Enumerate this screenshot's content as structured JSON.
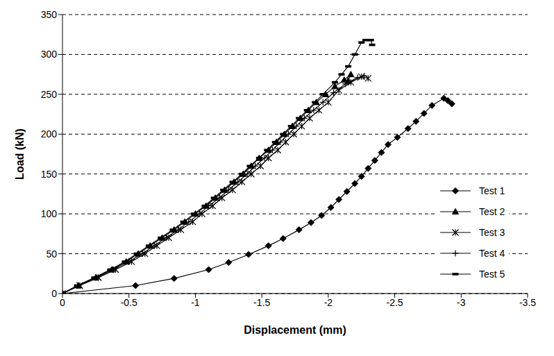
{
  "chart_data": {
    "type": "line",
    "x_label": "Displacement (mm)",
    "y_label": "Load (kN)",
    "xlim": [
      0,
      -3.5
    ],
    "xticks": [
      0,
      -0.5,
      -1,
      -1.5,
      -2,
      -2.5,
      -3,
      -3.5
    ],
    "ylim": [
      0,
      350
    ],
    "yticks": [
      0,
      50,
      100,
      150,
      200,
      250,
      300,
      350
    ],
    "grid": true,
    "legend": "lower right",
    "series": [
      {
        "name": "Test 1",
        "color": "#000000",
        "marker": "diamond",
        "x": [
          0,
          -0.55,
          -0.84,
          -1.1,
          -1.25,
          -1.4,
          -1.55,
          -1.66,
          -1.78,
          -1.87,
          -1.95,
          -2.02,
          -2.08,
          -2.14,
          -2.2,
          -2.25,
          -2.3,
          -2.35,
          -2.4,
          -2.45,
          -2.52,
          -2.6,
          -2.66,
          -2.72,
          -2.78,
          -2.87,
          -2.9,
          -2.93
        ],
        "values": [
          0,
          10,
          19,
          30,
          39,
          49,
          60,
          69,
          80,
          89,
          98,
          108,
          118,
          128,
          138,
          147,
          157,
          167,
          177,
          187,
          196,
          207,
          216,
          226,
          236,
          245,
          242,
          238
        ]
      },
      {
        "name": "Test 2",
        "color": "#000000",
        "marker": "triangle",
        "x": [
          0,
          -0.12,
          -0.25,
          -0.37,
          -0.48,
          -0.57,
          -0.66,
          -0.75,
          -0.84,
          -0.92,
          -1.0,
          -1.08,
          -1.15,
          -1.22,
          -1.29,
          -1.36,
          -1.42,
          -1.48,
          -1.55,
          -1.61,
          -1.67,
          -1.73,
          -1.79,
          -1.85,
          -1.91,
          -1.98,
          -2.05,
          -2.12,
          -2.17,
          -2.15
        ],
        "values": [
          0,
          10,
          20,
          30,
          40,
          50,
          60,
          70,
          80,
          90,
          100,
          110,
          120,
          130,
          140,
          150,
          160,
          170,
          180,
          190,
          200,
          210,
          220,
          230,
          240,
          250,
          260,
          268,
          275,
          267
        ]
      },
      {
        "name": "Test 3",
        "color": "#000000",
        "marker": "star",
        "x": [
          0,
          -0.13,
          -0.27,
          -0.4,
          -0.52,
          -0.62,
          -0.71,
          -0.8,
          -0.89,
          -0.98,
          -1.05,
          -1.13,
          -1.2,
          -1.28,
          -1.35,
          -1.42,
          -1.49,
          -1.55,
          -1.62,
          -1.68,
          -1.74,
          -1.8,
          -1.86,
          -1.93,
          -2.0,
          -2.08,
          -2.17,
          -2.25,
          -2.3
        ],
        "values": [
          0,
          10,
          20,
          30,
          40,
          50,
          60,
          70,
          80,
          90,
          100,
          110,
          120,
          130,
          140,
          150,
          160,
          170,
          180,
          190,
          200,
          210,
          220,
          230,
          240,
          255,
          265,
          272,
          270
        ]
      },
      {
        "name": "Test 4",
        "color": "#000000",
        "marker": "plus",
        "x": [
          0,
          -0.12,
          -0.26,
          -0.38,
          -0.5,
          -0.6,
          -0.69,
          -0.78,
          -0.87,
          -0.95,
          -1.03,
          -1.1,
          -1.18,
          -1.25,
          -1.32,
          -1.39,
          -1.45,
          -1.52,
          -1.58,
          -1.64,
          -1.7,
          -1.76,
          -1.82,
          -1.89,
          -1.96,
          -2.04,
          -2.13,
          -2.22,
          -2.27
        ],
        "values": [
          0,
          10,
          20,
          30,
          40,
          50,
          60,
          70,
          80,
          90,
          100,
          110,
          120,
          130,
          140,
          150,
          160,
          170,
          180,
          190,
          200,
          210,
          220,
          230,
          240,
          252,
          263,
          271,
          273
        ]
      },
      {
        "name": "Test 5",
        "color": "#000000",
        "marker": "dash",
        "x": [
          0,
          -0.11,
          -0.24,
          -0.36,
          -0.47,
          -0.56,
          -0.65,
          -0.74,
          -0.83,
          -0.91,
          -0.99,
          -1.07,
          -1.14,
          -1.21,
          -1.28,
          -1.35,
          -1.41,
          -1.48,
          -1.54,
          -1.6,
          -1.66,
          -1.72,
          -1.78,
          -1.84,
          -1.9,
          -1.96,
          -2.05,
          -2.1,
          -2.15,
          -2.2,
          -2.25,
          -2.28,
          -2.32,
          -2.33
        ],
        "values": [
          0,
          10,
          20,
          30,
          40,
          50,
          60,
          70,
          80,
          90,
          100,
          110,
          120,
          130,
          140,
          150,
          160,
          170,
          180,
          190,
          200,
          210,
          220,
          230,
          240,
          250,
          265,
          275,
          285,
          300,
          315,
          318,
          318,
          312
        ]
      }
    ]
  }
}
